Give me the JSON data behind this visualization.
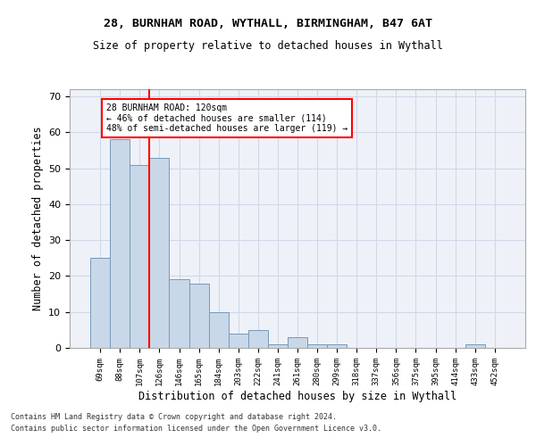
{
  "title1": "28, BURNHAM ROAD, WYTHALL, BIRMINGHAM, B47 6AT",
  "title2": "Size of property relative to detached houses in Wythall",
  "xlabel": "Distribution of detached houses by size in Wythall",
  "ylabel": "Number of detached properties",
  "categories": [
    "69sqm",
    "88sqm",
    "107sqm",
    "126sqm",
    "146sqm",
    "165sqm",
    "184sqm",
    "203sqm",
    "222sqm",
    "241sqm",
    "261sqm",
    "280sqm",
    "299sqm",
    "318sqm",
    "337sqm",
    "356sqm",
    "375sqm",
    "395sqm",
    "414sqm",
    "433sqm",
    "452sqm"
  ],
  "values": [
    25,
    58,
    51,
    53,
    19,
    18,
    10,
    4,
    5,
    1,
    3,
    1,
    1,
    0,
    0,
    0,
    0,
    0,
    0,
    1,
    0
  ],
  "bar_color": "#c8d8e8",
  "bar_edge_color": "#7799bb",
  "vline_x": 2.5,
  "vline_color": "red",
  "annotation_line1": "28 BURNHAM ROAD: 120sqm",
  "annotation_line2": "← 46% of detached houses are smaller (114)",
  "annotation_line3": "48% of semi-detached houses are larger (119) →",
  "annotation_box_color": "white",
  "annotation_box_edge": "red",
  "ylim": [
    0,
    72
  ],
  "yticks": [
    0,
    10,
    20,
    30,
    40,
    50,
    60,
    70
  ],
  "bg_color": "#eef2f8",
  "grid_color": "#d0d8e8",
  "footnote": "Contains HM Land Registry data © Crown copyright and database right 2024.\nContains public sector information licensed under the Open Government Licence v3.0."
}
